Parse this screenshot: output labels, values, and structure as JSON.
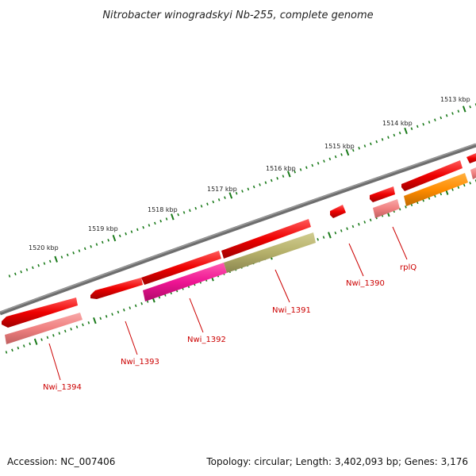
{
  "title": "Nitrobacter winogradskyi Nb-255, complete genome",
  "footer": {
    "accession": "Accession: NC_007406",
    "summary": "Topology: circular; Length: 3,402,093 bp; Genes: 3,176"
  },
  "scale_labels": [
    "1513 kbp",
    "1514 kbp",
    "1515 kbp",
    "1516 kbp",
    "1517 kbp",
    "1518 kbp",
    "1519 kbp",
    "1520 kbp"
  ],
  "genes": [
    {
      "label": "Nwi_1394"
    },
    {
      "label": "Nwi_1393"
    },
    {
      "label": "Nwi_1392"
    },
    {
      "label": "Nwi_1391"
    },
    {
      "label": "Nwi_1390"
    },
    {
      "label": "rplQ"
    }
  ],
  "colors": {
    "backbone": "#7a7a7a",
    "gene_red": "#ee0000",
    "cds_pink": "#f08080",
    "cds_magenta": "#ee1493",
    "cds_olive": "#b5b06a",
    "cds_orange": "#ff8c00",
    "tick_green": "#1a7a1a",
    "label_red": "#cc0000"
  }
}
